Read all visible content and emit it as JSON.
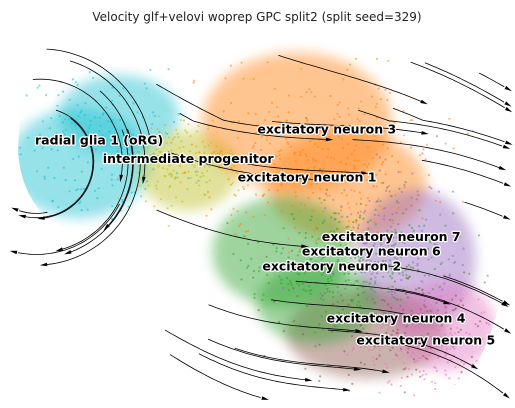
{
  "chart_data": {
    "type": "scatter",
    "title": "Velocity glf+velovi woprep GPC split2 (split seed=329)",
    "xlabel": "",
    "ylabel": "",
    "axes_visible": false,
    "grid": false,
    "legend": "none (labels drawn on data)",
    "overlay": "RNA velocity streamlines with arrowheads",
    "clusters": [
      {
        "name": "radial glia 1 (oRG)",
        "color": "#17becf",
        "label_center": [
          0.18,
          0.69
        ]
      },
      {
        "name": "intermediate progenitor",
        "color": "#bcbd22",
        "label_center": [
          0.36,
          0.64
        ]
      },
      {
        "name": "excitatory neuron 3",
        "color": "#ff7f0e",
        "label_center": [
          0.64,
          0.72
        ]
      },
      {
        "name": "excitatory neuron 1",
        "color": "#ff7f0e",
        "label_center": [
          0.6,
          0.59
        ]
      },
      {
        "name": "excitatory neuron 7",
        "color": "#9467bd",
        "label_center": [
          0.77,
          0.43
        ]
      },
      {
        "name": "excitatory neuron 6",
        "color": "#2ca02c",
        "label_center": [
          0.73,
          0.39
        ]
      },
      {
        "name": "excitatory neuron 2",
        "color": "#2ca02c",
        "label_center": [
          0.65,
          0.35
        ]
      },
      {
        "name": "excitatory neuron 4",
        "color": "#8c564b",
        "label_center": [
          0.78,
          0.21
        ]
      },
      {
        "name": "excitatory neuron 5",
        "color": "#e377c2",
        "label_center": [
          0.84,
          0.15
        ]
      }
    ]
  }
}
